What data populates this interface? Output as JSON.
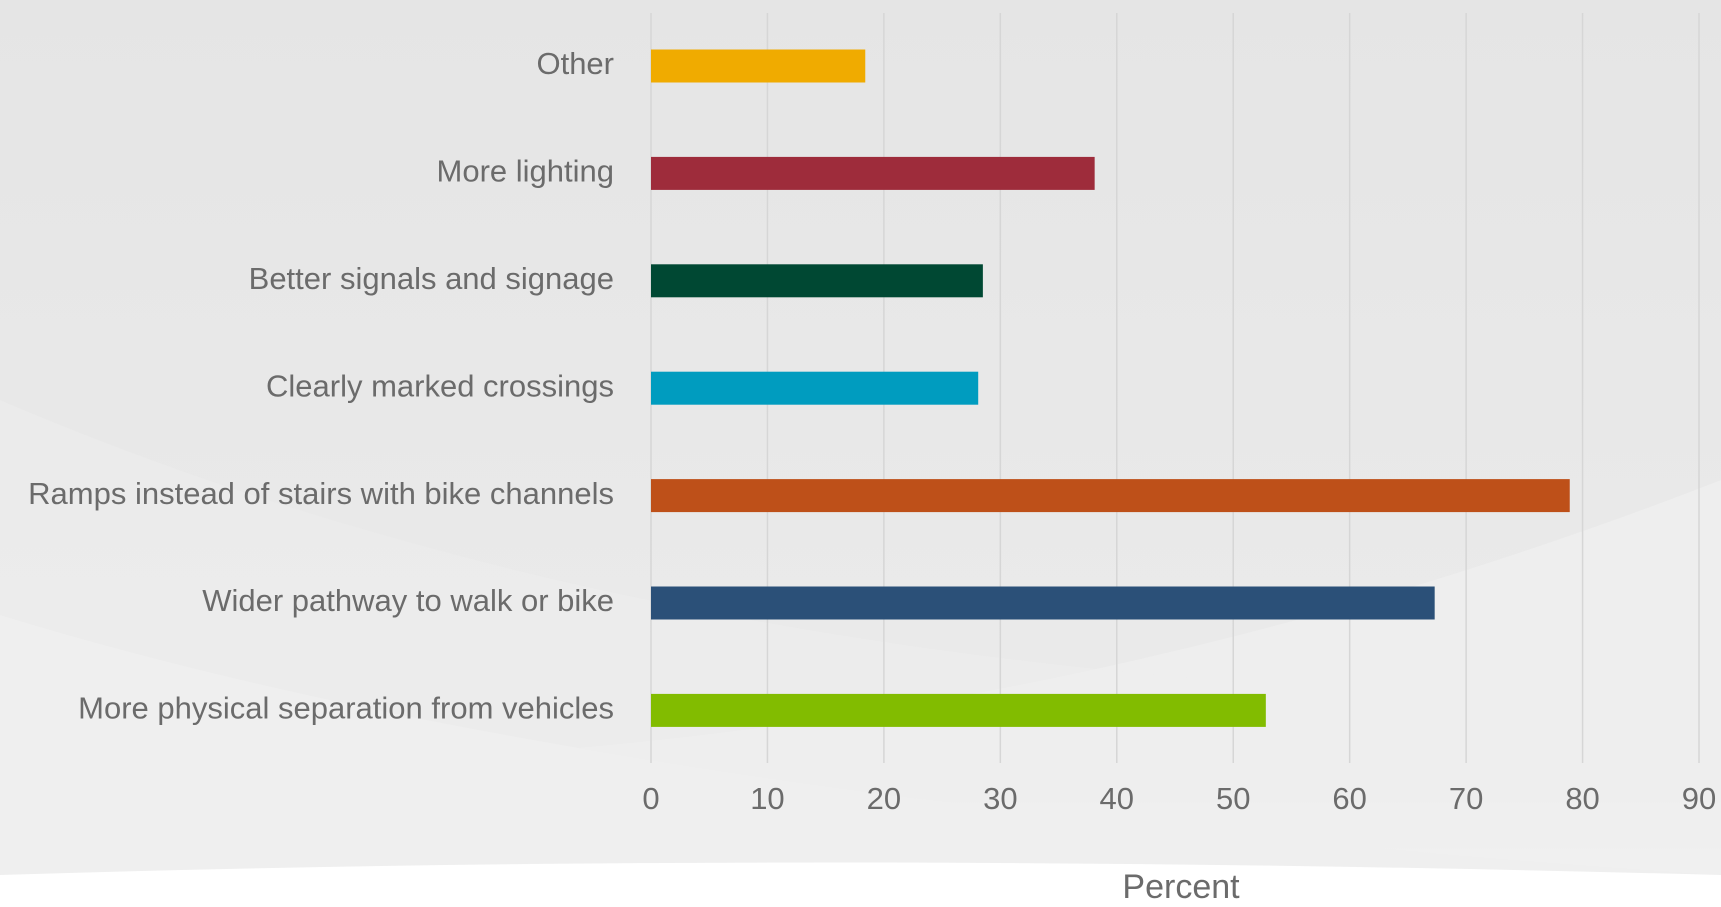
{
  "chart_data": {
    "type": "barh",
    "x_label": "Percent",
    "categories": [
      "Other",
      "More lighting",
      "Better signals and signage",
      "Clearly marked crossings",
      "Ramps instead of stairs with bike channels",
      "Wider pathway to walk or bike",
      "More physical separation from vehicles"
    ],
    "values": [
      18.4,
      38.1,
      28.5,
      28.1,
      78.9,
      67.3,
      52.8
    ],
    "colors": [
      "#f0ab00",
      "#9e2c3b",
      "#004833",
      "#009cbf",
      "#be5019",
      "#2b5078",
      "#82bc00"
    ],
    "xlim": [
      0,
      90
    ],
    "xticks": [
      0,
      10,
      20,
      30,
      40,
      50,
      60,
      70,
      80,
      90
    ],
    "grid": true
  }
}
